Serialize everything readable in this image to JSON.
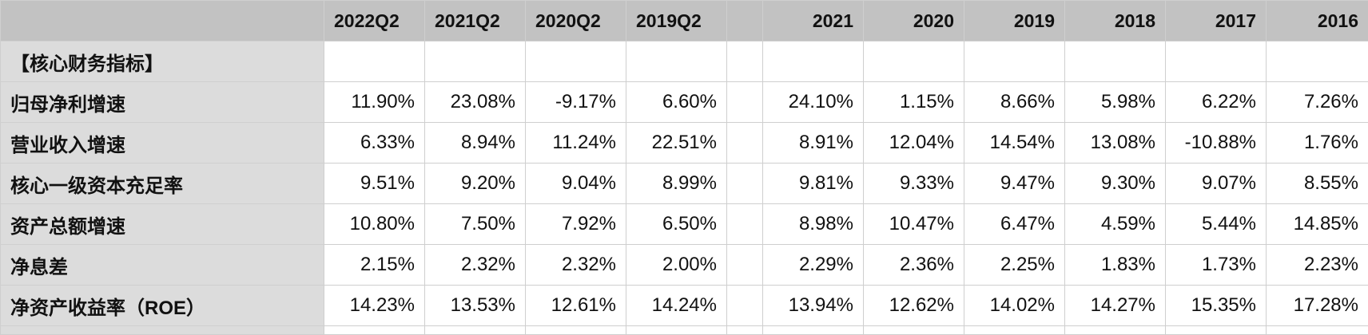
{
  "columns": [
    "2022Q2",
    "2021Q2",
    "2020Q2",
    "2019Q2",
    "",
    "2021",
    "2020",
    "2019",
    "2018",
    "2017",
    "2016"
  ],
  "section_title": "【核心财务指标】",
  "rows": [
    {
      "label": "归母净利增速",
      "values": [
        "11.90%",
        "23.08%",
        "-9.17%",
        "6.60%",
        "",
        "24.10%",
        "1.15%",
        "8.66%",
        "5.98%",
        "6.22%",
        "7.26%"
      ]
    },
    {
      "label": "营业收入增速",
      "values": [
        "6.33%",
        "8.94%",
        "11.24%",
        "22.51%",
        "",
        "8.91%",
        "12.04%",
        "14.54%",
        "13.08%",
        "-10.88%",
        "1.76%"
      ]
    },
    {
      "label": "核心一级资本充足率",
      "values": [
        "9.51%",
        "9.20%",
        "9.04%",
        "8.99%",
        "",
        "9.81%",
        "9.33%",
        "9.47%",
        "9.30%",
        "9.07%",
        "8.55%"
      ]
    },
    {
      "label": "资产总额增速",
      "values": [
        "10.80%",
        "7.50%",
        "7.92%",
        "6.50%",
        "",
        "8.98%",
        "10.47%",
        "6.47%",
        "4.59%",
        "5.44%",
        "14.85%"
      ]
    },
    {
      "label": "净息差",
      "values": [
        "2.15%",
        "2.32%",
        "2.32%",
        "2.00%",
        "",
        "2.29%",
        "2.36%",
        "2.25%",
        "1.83%",
        "1.73%",
        "2.23%"
      ]
    },
    {
      "label": "净资产收益率（ROE）",
      "values": [
        "14.23%",
        "13.53%",
        "12.61%",
        "14.24%",
        "",
        "13.94%",
        "12.62%",
        "14.02%",
        "14.27%",
        "15.35%",
        "17.28%"
      ]
    }
  ]
}
